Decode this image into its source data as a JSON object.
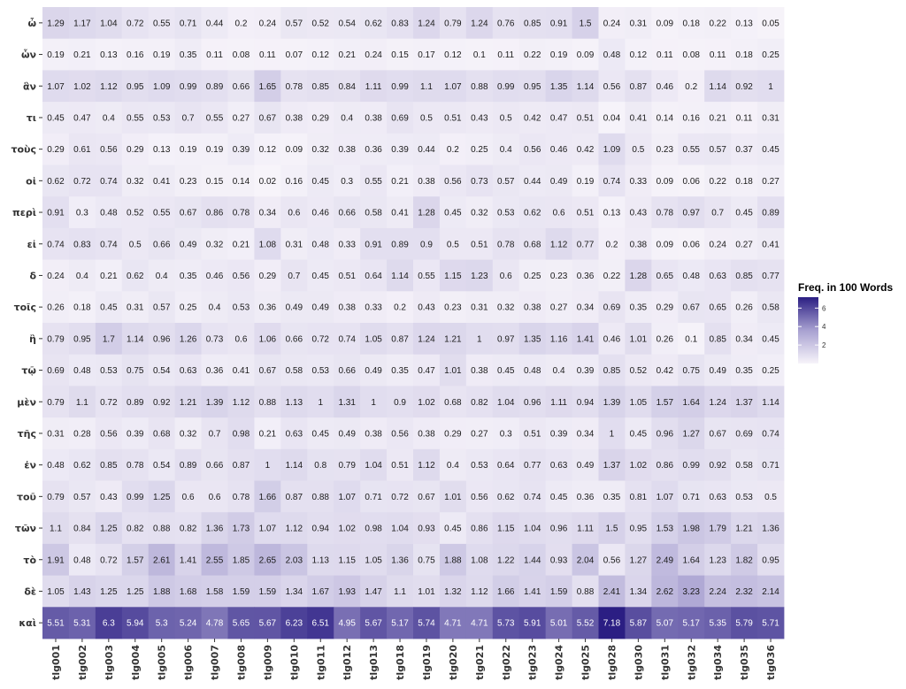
{
  "chart_data": {
    "type": "heatmap",
    "title": "",
    "xlabel": "",
    "ylabel": "",
    "x": [
      "tlg001",
      "tlg002",
      "tlg003",
      "tlg004",
      "tlg005",
      "tlg006",
      "tlg007",
      "tlg008",
      "tlg009",
      "tlg010",
      "tlg011",
      "tlg012",
      "tlg013",
      "tlg018",
      "tlg019",
      "tlg020",
      "tlg021",
      "tlg022",
      "tlg023",
      "tlg024",
      "tlg025",
      "tlg028",
      "tlg030",
      "tlg031",
      "tlg032",
      "tlg034",
      "tlg035",
      "tlg036"
    ],
    "y": [
      "ὦ",
      "ὧν",
      "ἂν",
      "τι",
      "τοὺς",
      "οἱ",
      "περὶ",
      "εἰ",
      "δ",
      "τοῖς",
      "ἢ",
      "τῷ",
      "μὲν",
      "τῆς",
      "ἐν",
      "τοῦ",
      "τῶν",
      "τὸ",
      "δὲ",
      "καὶ"
    ],
    "values": [
      [
        1.29,
        1.17,
        1.04,
        0.72,
        0.55,
        0.71,
        0.44,
        0.2,
        0.24,
        0.57,
        0.52,
        0.54,
        0.62,
        0.83,
        1.24,
        0.79,
        1.24,
        0.76,
        0.85,
        0.91,
        1.5,
        0.24,
        0.31,
        0.09,
        0.18,
        0.22,
        0.13,
        0.05
      ],
      [
        0.19,
        0.21,
        0.13,
        0.16,
        0.19,
        0.35,
        0.11,
        0.08,
        0.11,
        0.07,
        0.12,
        0.21,
        0.24,
        0.15,
        0.17,
        0.12,
        0.1,
        0.11,
        0.22,
        0.19,
        0.09,
        0.48,
        0.12,
        0.11,
        0.08,
        0.11,
        0.18,
        0.25
      ],
      [
        1.07,
        1.02,
        1.12,
        0.95,
        1.09,
        0.99,
        0.89,
        0.66,
        1.65,
        0.78,
        0.85,
        0.84,
        1.11,
        0.99,
        1.1,
        1.07,
        0.88,
        0.99,
        0.95,
        1.35,
        1.14,
        0.56,
        0.87,
        0.46,
        0.2,
        1.14,
        0.92,
        1
      ],
      [
        0.45,
        0.47,
        0.4,
        0.55,
        0.53,
        0.7,
        0.55,
        0.27,
        0.67,
        0.38,
        0.29,
        0.4,
        0.38,
        0.69,
        0.5,
        0.51,
        0.43,
        0.5,
        0.42,
        0.47,
        0.51,
        0.04,
        0.41,
        0.14,
        0.16,
        0.21,
        0.11,
        0.31
      ],
      [
        0.29,
        0.61,
        0.56,
        0.29,
        0.13,
        0.19,
        0.19,
        0.39,
        0.12,
        0.09,
        0.32,
        0.38,
        0.36,
        0.39,
        0.44,
        0.2,
        0.25,
        0.4,
        0.56,
        0.46,
        0.42,
        1.09,
        0.5,
        0.23,
        0.55,
        0.57,
        0.37,
        0.45
      ],
      [
        0.62,
        0.72,
        0.74,
        0.32,
        0.41,
        0.23,
        0.15,
        0.14,
        0.02,
        0.16,
        0.45,
        0.3,
        0.55,
        0.21,
        0.38,
        0.56,
        0.73,
        0.57,
        0.44,
        0.49,
        0.19,
        0.74,
        0.33,
        0.09,
        0.06,
        0.22,
        0.18,
        0.27
      ],
      [
        0.91,
        0.3,
        0.48,
        0.52,
        0.55,
        0.67,
        0.86,
        0.78,
        0.34,
        0.6,
        0.46,
        0.66,
        0.58,
        0.41,
        1.28,
        0.45,
        0.32,
        0.53,
        0.62,
        0.6,
        0.51,
        0.13,
        0.43,
        0.78,
        0.97,
        0.7,
        0.45,
        0.89
      ],
      [
        0.74,
        0.83,
        0.74,
        0.5,
        0.66,
        0.49,
        0.32,
        0.21,
        1.08,
        0.31,
        0.48,
        0.33,
        0.91,
        0.89,
        0.9,
        0.5,
        0.51,
        0.78,
        0.68,
        1.12,
        0.77,
        0.2,
        0.38,
        0.09,
        0.06,
        0.24,
        0.27,
        0.41
      ],
      [
        0.24,
        0.4,
        0.21,
        0.62,
        0.4,
        0.35,
        0.46,
        0.56,
        0.29,
        0.7,
        0.45,
        0.51,
        0.64,
        1.14,
        0.55,
        1.15,
        1.23,
        0.6,
        0.25,
        0.23,
        0.36,
        0.22,
        1.28,
        0.65,
        0.48,
        0.63,
        0.85,
        0.77
      ],
      [
        0.26,
        0.18,
        0.45,
        0.31,
        0.57,
        0.25,
        0.4,
        0.53,
        0.36,
        0.49,
        0.49,
        0.38,
        0.33,
        0.2,
        0.43,
        0.23,
        0.31,
        0.32,
        0.38,
        0.27,
        0.34,
        0.69,
        0.35,
        0.29,
        0.67,
        0.65,
        0.26,
        0.58
      ],
      [
        0.79,
        0.95,
        1.7,
        1.14,
        0.96,
        1.26,
        0.73,
        0.6,
        1.06,
        0.66,
        0.72,
        0.74,
        1.05,
        0.87,
        1.24,
        1.21,
        1,
        0.97,
        1.35,
        1.16,
        1.41,
        0.46,
        1.01,
        0.26,
        0.1,
        0.85,
        0.34,
        0.45
      ],
      [
        0.69,
        0.48,
        0.53,
        0.75,
        0.54,
        0.63,
        0.36,
        0.41,
        0.67,
        0.58,
        0.53,
        0.66,
        0.49,
        0.35,
        0.47,
        1.01,
        0.38,
        0.45,
        0.48,
        0.4,
        0.39,
        0.85,
        0.52,
        0.42,
        0.75,
        0.49,
        0.35,
        0.25
      ],
      [
        0.79,
        1.1,
        0.72,
        0.89,
        0.92,
        1.21,
        1.39,
        1.12,
        0.88,
        1.13,
        1,
        1.31,
        1,
        0.9,
        1.02,
        0.68,
        0.82,
        1.04,
        0.96,
        1.11,
        0.94,
        1.39,
        1.05,
        1.57,
        1.64,
        1.24,
        1.37,
        1.14
      ],
      [
        0.31,
        0.28,
        0.56,
        0.39,
        0.68,
        0.32,
        0.7,
        0.98,
        0.21,
        0.63,
        0.45,
        0.49,
        0.38,
        0.56,
        0.38,
        0.29,
        0.27,
        0.3,
        0.51,
        0.39,
        0.34,
        1,
        0.45,
        0.96,
        1.27,
        0.67,
        0.69,
        0.74
      ],
      [
        0.48,
        0.62,
        0.85,
        0.78,
        0.54,
        0.89,
        0.66,
        0.87,
        1,
        1.14,
        0.8,
        0.79,
        1.04,
        0.51,
        1.12,
        0.4,
        0.53,
        0.64,
        0.77,
        0.63,
        0.49,
        1.37,
        1.02,
        0.86,
        0.99,
        0.92,
        0.58,
        0.71
      ],
      [
        0.79,
        0.57,
        0.43,
        0.99,
        1.25,
        0.6,
        0.6,
        0.78,
        1.66,
        0.87,
        0.88,
        1.07,
        0.71,
        0.72,
        0.67,
        1.01,
        0.56,
        0.62,
        0.74,
        0.45,
        0.36,
        0.35,
        0.81,
        1.07,
        0.71,
        0.63,
        0.53,
        0.5
      ],
      [
        1.1,
        0.84,
        1.25,
        0.82,
        0.88,
        0.82,
        1.36,
        1.73,
        1.07,
        1.12,
        0.94,
        1.02,
        0.98,
        1.04,
        0.93,
        0.45,
        0.86,
        1.15,
        1.04,
        0.96,
        1.11,
        1.5,
        0.95,
        1.53,
        1.98,
        1.79,
        1.21,
        1.36
      ],
      [
        1.91,
        0.48,
        0.72,
        1.57,
        2.61,
        1.41,
        2.55,
        1.85,
        2.65,
        2.03,
        1.13,
        1.15,
        1.05,
        1.36,
        0.75,
        1.88,
        1.08,
        1.22,
        1.44,
        0.93,
        2.04,
        0.56,
        1.27,
        2.49,
        1.64,
        1.23,
        1.82,
        0.95
      ],
      [
        1.05,
        1.43,
        1.25,
        1.25,
        1.88,
        1.68,
        1.58,
        1.59,
        1.59,
        1.34,
        1.67,
        1.93,
        1.47,
        1.1,
        1.01,
        1.32,
        1.12,
        1.66,
        1.41,
        1.59,
        0.88,
        2.41,
        1.34,
        2.62,
        3.23,
        2.24,
        2.32,
        2.14
      ],
      [
        5.51,
        5.31,
        6.3,
        5.94,
        5.3,
        5.24,
        4.78,
        5.65,
        5.67,
        6.23,
        6.51,
        4.95,
        5.67,
        5.17,
        5.74,
        4.71,
        4.71,
        5.73,
        5.91,
        5.01,
        5.52,
        7.18,
        5.87,
        5.07,
        5.17,
        5.35,
        5.79,
        5.71
      ]
    ],
    "legend": {
      "title": "Freq. in 100 Words",
      "ticks": [
        2,
        4,
        6
      ],
      "range": [
        0,
        7.18
      ],
      "placement": "right"
    },
    "colors": {
      "low": "#f7f4fa",
      "mid": "#a8a1d1",
      "high": "#2b1e83"
    }
  }
}
